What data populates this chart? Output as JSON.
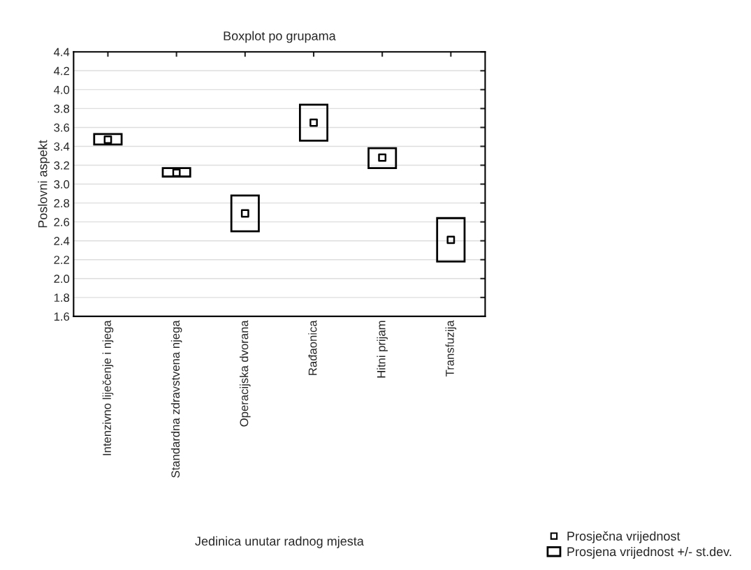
{
  "chart_data": {
    "type": "bar",
    "title": "Boxplot po grupama",
    "xlabel": "Jedinica unutar radnog mjesta",
    "ylabel": "Poslovni aspekt",
    "categories": [
      "Intenzivno liječenje i njega",
      "Standardna zdravstvena njega",
      "Operacijska dvorana",
      "Rađaonica",
      "Hitni prijam",
      "Transfuzija"
    ],
    "series": [
      {
        "name": "Prosječna vrijednost",
        "type": "scatter",
        "marker": "square",
        "color": "#000000",
        "values": [
          3.47,
          3.12,
          2.69,
          3.65,
          3.28,
          2.41
        ]
      },
      {
        "name": "Prosjena vrijednost +/- st.dev.",
        "color": "#000000",
        "base": [
          3.42,
          3.08,
          2.5,
          3.46,
          3.17,
          2.18
        ],
        "values": [
          0.11,
          0.09,
          0.38,
          0.38,
          0.21,
          0.46
        ]
      }
    ],
    "ylim": [
      1.6,
      4.4
    ],
    "yticks": [
      {
        "value": 1.6,
        "label": "1.6"
      },
      {
        "value": 1.8,
        "label": "1.8"
      },
      {
        "value": 2.0,
        "label": "2.0"
      },
      {
        "value": 2.2,
        "label": "2.2"
      },
      {
        "value": 2.4,
        "label": "2.4"
      },
      {
        "value": 2.6,
        "label": "2.6"
      },
      {
        "value": 2.8,
        "label": "2.8"
      },
      {
        "value": 3.0,
        "label": "3.0"
      },
      {
        "value": 3.2,
        "label": "3.2"
      },
      {
        "value": 3.4,
        "label": "3.4"
      },
      {
        "value": 3.6,
        "label": "3.6"
      },
      {
        "value": 3.8,
        "label": "3.8"
      },
      {
        "value": 4.0,
        "label": "4.0"
      },
      {
        "value": 4.2,
        "label": "4.2"
      },
      {
        "value": 4.4,
        "label": "4.4"
      }
    ],
    "grid": "y",
    "legend": "bottom right"
  }
}
